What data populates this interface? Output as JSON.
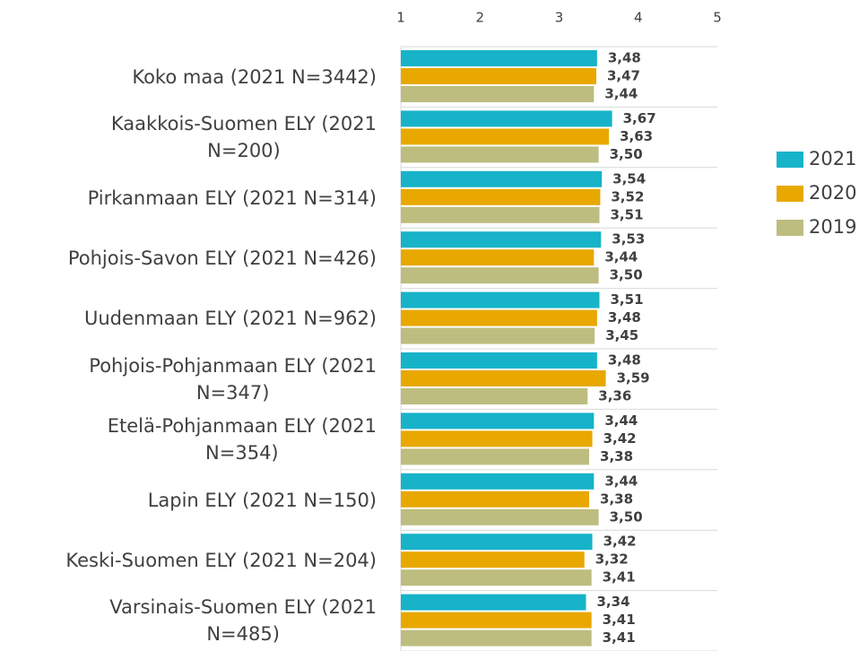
{
  "chart_data": {
    "type": "bar",
    "orientation": "horizontal",
    "categories": [
      "Koko maa (2021 N=3442)",
      "Kaakkois-Suomen ELY (2021\nN=200)",
      "Pirkanmaan ELY (2021 N=314)",
      "Pohjois-Savon ELY (2021 N=426)",
      "Uudenmaan ELY (2021 N=962)",
      "Pohjois-Pohjanmaan ELY (2021\nN=347)",
      "Etelä-Pohjanmaan ELY (2021\nN=354)",
      "Lapin ELY (2021 N=150)",
      "Keski-Suomen ELY (2021 N=204)",
      "Varsinais-Suomen ELY (2021\nN=485)"
    ],
    "series": [
      {
        "name": "2021",
        "color": "#17b3c9",
        "values": [
          3.48,
          3.67,
          3.54,
          3.53,
          3.51,
          3.48,
          3.44,
          3.44,
          3.42,
          3.34
        ],
        "value_labels": [
          "3,48",
          "3,67",
          "3,54",
          "3,53",
          "3,51",
          "3,48",
          "3,44",
          "3,44",
          "3,42",
          "3,34"
        ]
      },
      {
        "name": "2020",
        "color": "#e8a800",
        "values": [
          3.47,
          3.63,
          3.52,
          3.44,
          3.48,
          3.59,
          3.42,
          3.38,
          3.32,
          3.41
        ],
        "value_labels": [
          "3,47",
          "3,63",
          "3,52",
          "3,44",
          "3,48",
          "3,59",
          "3,42",
          "3,38",
          "3,32",
          "3,41"
        ]
      },
      {
        "name": "2019",
        "color": "#bdbd7f",
        "values": [
          3.44,
          3.5,
          3.51,
          3.5,
          3.45,
          3.36,
          3.38,
          3.5,
          3.41,
          3.41
        ],
        "value_labels": [
          "3,44",
          "3,50",
          "3,51",
          "3,50",
          "3,45",
          "3,36",
          "3,38",
          "3,50",
          "3,41",
          "3,41"
        ]
      }
    ],
    "xlim": [
      1,
      5
    ],
    "xticks": [
      1,
      2,
      3,
      4,
      5
    ],
    "legend": "right"
  }
}
